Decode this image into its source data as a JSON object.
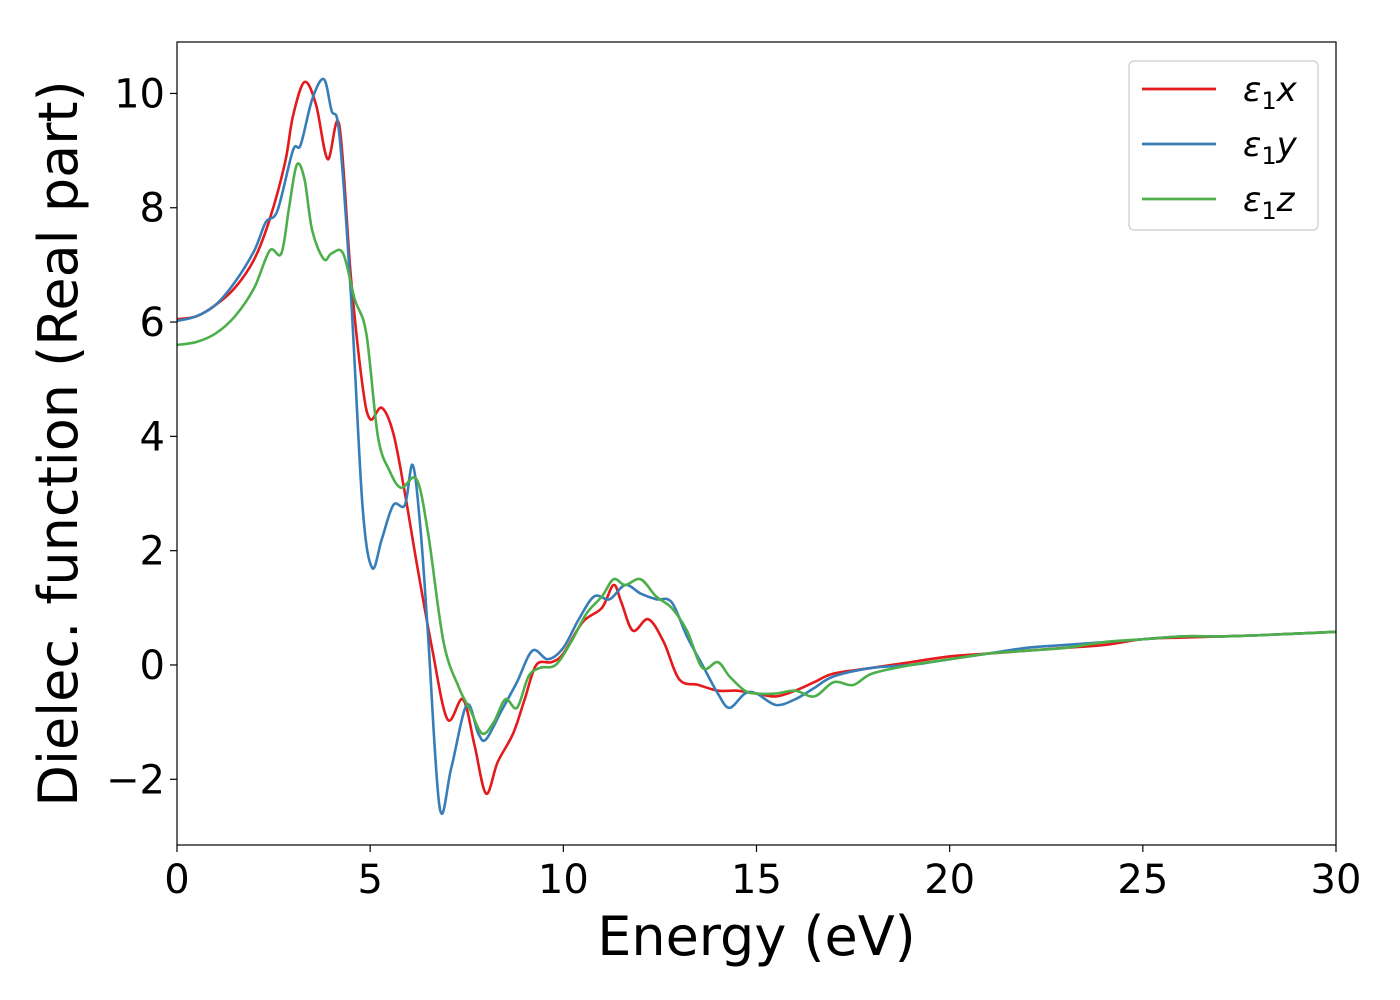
{
  "chart_data": {
    "type": "line",
    "title": "",
    "xlabel": "Energy (eV)",
    "ylabel": "Dielec. function (Real part)",
    "xlim": [
      0,
      30
    ],
    "ylim": [
      -3.15,
      10.9
    ],
    "xticks": [
      0,
      5,
      10,
      15,
      20,
      25,
      30
    ],
    "yticks": [
      -2,
      0,
      2,
      4,
      6,
      8,
      10
    ],
    "xtick_labels": [
      "0",
      "5",
      "10",
      "15",
      "20",
      "25",
      "30"
    ],
    "ytick_labels": [
      "−2",
      "0",
      "2",
      "4",
      "6",
      "8",
      "10"
    ],
    "grid": false,
    "legend_position": "top-right",
    "series": [
      {
        "name": "ε₁x",
        "legend_main": "ε",
        "legend_sub": "1",
        "legend_var": "x",
        "color": "#e41a1c",
        "x": [
          0,
          0.5,
          1,
          1.5,
          2,
          2.4,
          2.8,
          3.0,
          3.3,
          3.6,
          3.9,
          4.2,
          4.5,
          4.8,
          5.0,
          5.3,
          5.6,
          5.9,
          6.2,
          6.6,
          7.0,
          7.4,
          7.7,
          8.0,
          8.3,
          8.7,
          9.0,
          9.3,
          9.7,
          10.0,
          10.5,
          11.0,
          11.3,
          11.5,
          11.8,
          12.2,
          12.6,
          13.0,
          13.5,
          14.0,
          14.5,
          15.0,
          15.5,
          16.0,
          16.5,
          17.0,
          18.0,
          19.0,
          20.0,
          21.0,
          22.0,
          23.0,
          24.0,
          25.0,
          26.0,
          27.0,
          28.0,
          29.0,
          30.0
        ],
        "y": [
          6.05,
          6.1,
          6.3,
          6.6,
          7.1,
          7.8,
          8.8,
          9.6,
          10.2,
          9.8,
          8.85,
          9.45,
          6.8,
          4.9,
          4.3,
          4.5,
          4.05,
          3.0,
          1.8,
          0.3,
          -0.95,
          -0.6,
          -1.4,
          -2.25,
          -1.7,
          -1.2,
          -0.6,
          0.0,
          0.05,
          0.2,
          0.75,
          1.0,
          1.4,
          1.1,
          0.6,
          0.8,
          0.4,
          -0.25,
          -0.35,
          -0.45,
          -0.45,
          -0.5,
          -0.55,
          -0.45,
          -0.3,
          -0.15,
          -0.05,
          0.05,
          0.15,
          0.2,
          0.25,
          0.3,
          0.35,
          0.45,
          0.48,
          0.5,
          0.52,
          0.55,
          0.58
        ]
      },
      {
        "name": "ε₁y",
        "legend_main": "ε",
        "legend_sub": "1",
        "legend_var": "y",
        "color": "#377eb8",
        "x": [
          0,
          0.5,
          1,
          1.5,
          2,
          2.3,
          2.6,
          3.0,
          3.2,
          3.5,
          3.8,
          4.0,
          4.2,
          4.5,
          4.8,
          5.05,
          5.3,
          5.6,
          5.9,
          6.1,
          6.3,
          6.5,
          6.8,
          7.1,
          7.5,
          7.8,
          8.0,
          8.4,
          8.8,
          9.2,
          9.6,
          10.0,
          10.4,
          10.8,
          11.2,
          11.6,
          12.0,
          12.4,
          12.8,
          13.2,
          13.6,
          14.0,
          14.3,
          14.7,
          15.0,
          15.5,
          16.0,
          16.5,
          17.0,
          18.0,
          19.0,
          20.0,
          21.0,
          22.0,
          23.0,
          24.0,
          25.0,
          26.0,
          27.0,
          28.0,
          29.0,
          30.0
        ],
        "y": [
          6.02,
          6.1,
          6.3,
          6.7,
          7.25,
          7.75,
          7.95,
          9.0,
          9.1,
          9.9,
          10.25,
          9.7,
          9.3,
          6.5,
          2.8,
          1.7,
          2.2,
          2.8,
          2.8,
          3.5,
          2.4,
          0.5,
          -2.5,
          -1.8,
          -0.7,
          -1.2,
          -1.3,
          -0.8,
          -0.3,
          0.25,
          0.1,
          0.3,
          0.8,
          1.2,
          1.15,
          1.4,
          1.25,
          1.15,
          1.1,
          0.5,
          0.0,
          -0.5,
          -0.75,
          -0.5,
          -0.5,
          -0.7,
          -0.6,
          -0.4,
          -0.2,
          -0.05,
          0.0,
          0.1,
          0.2,
          0.3,
          0.35,
          0.4,
          0.45,
          0.5,
          0.5,
          0.52,
          0.55,
          0.58
        ]
      },
      {
        "name": "ε₁z",
        "legend_main": "ε",
        "legend_sub": "1",
        "legend_var": "z",
        "color": "#4daf4a",
        "x": [
          0,
          0.5,
          1,
          1.5,
          2,
          2.4,
          2.7,
          2.9,
          3.1,
          3.3,
          3.5,
          3.8,
          4.0,
          4.3,
          4.6,
          4.9,
          5.2,
          5.5,
          5.8,
          6.2,
          6.5,
          6.9,
          7.3,
          7.6,
          7.9,
          8.2,
          8.5,
          8.8,
          9.1,
          9.4,
          9.8,
          10.2,
          10.6,
          11.0,
          11.3,
          11.6,
          12.0,
          12.4,
          12.8,
          13.2,
          13.6,
          14.0,
          14.3,
          14.7,
          15.0,
          15.5,
          16.0,
          16.5,
          17.0,
          17.5,
          18.0,
          19.0,
          20.0,
          21.0,
          22.0,
          23.0,
          24.0,
          25.0,
          26.0,
          27.0,
          28.0,
          29.0,
          30.0
        ],
        "y": [
          5.6,
          5.65,
          5.8,
          6.1,
          6.6,
          7.25,
          7.2,
          8.0,
          8.75,
          8.5,
          7.6,
          7.1,
          7.2,
          7.2,
          6.4,
          5.8,
          4.0,
          3.4,
          3.1,
          3.25,
          2.3,
          0.4,
          -0.4,
          -0.8,
          -1.2,
          -1.0,
          -0.6,
          -0.75,
          -0.2,
          -0.05,
          0.0,
          0.4,
          0.9,
          1.2,
          1.5,
          1.4,
          1.5,
          1.2,
          1.0,
          0.6,
          -0.05,
          0.05,
          -0.2,
          -0.45,
          -0.5,
          -0.5,
          -0.45,
          -0.55,
          -0.3,
          -0.35,
          -0.15,
          0.0,
          0.1,
          0.2,
          0.25,
          0.3,
          0.4,
          0.45,
          0.5,
          0.5,
          0.52,
          0.55,
          0.58
        ]
      }
    ]
  }
}
